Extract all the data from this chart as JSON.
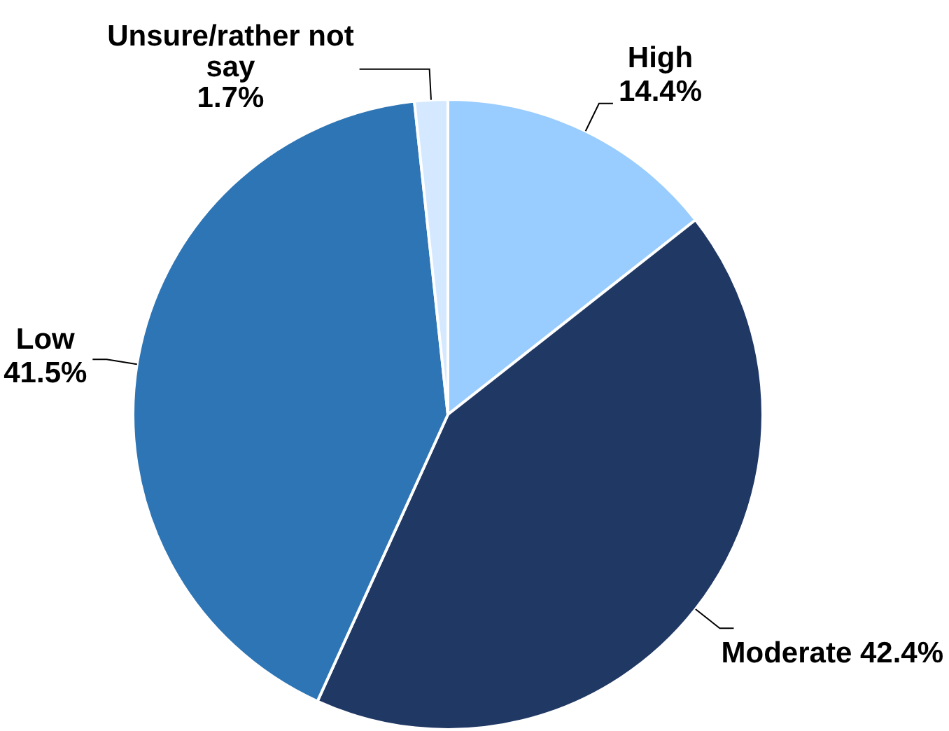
{
  "chart_data": {
    "type": "pie",
    "categories": [
      "High",
      "Moderate",
      "Low",
      "Unsure/rather not say"
    ],
    "values": [
      14.4,
      42.4,
      41.5,
      1.7
    ],
    "value_labels": [
      "14.4%",
      "42.4%",
      "41.5%",
      "1.7%"
    ],
    "colors": [
      "#99ccff",
      "#203864",
      "#2e75b6",
      "#d4e9ff"
    ],
    "legend": false
  }
}
